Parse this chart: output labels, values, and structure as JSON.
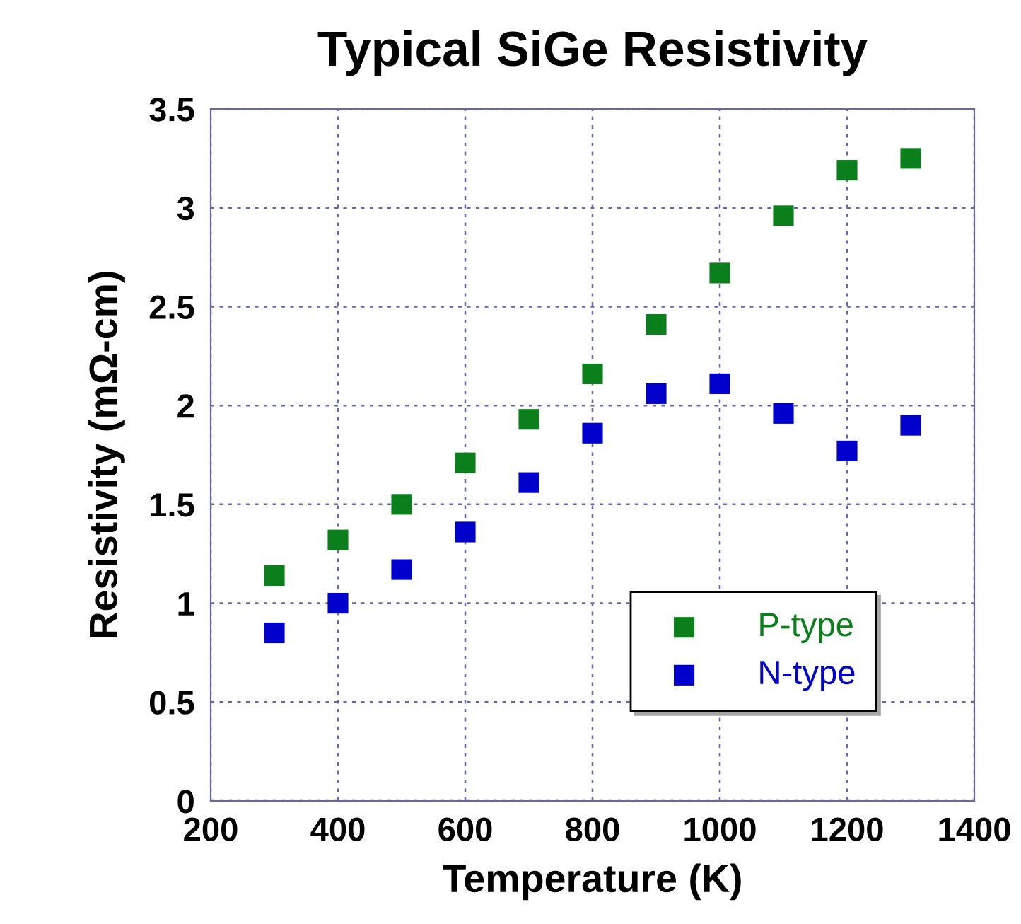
{
  "chart_data": {
    "type": "scatter",
    "title": "Typical SiGe Resistivity",
    "xlabel": "Temperature (K)",
    "ylabel": "Resistivity (mΩ-cm)",
    "x": [
      300,
      400,
      500,
      600,
      700,
      800,
      900,
      1000,
      1100,
      1200,
      1300
    ],
    "series": [
      {
        "name": "P-type",
        "color": "#0b7f1b",
        "values": [
          1.14,
          1.32,
          1.5,
          1.71,
          1.93,
          2.16,
          2.41,
          2.67,
          2.96,
          3.19,
          3.25
        ]
      },
      {
        "name": "N-type",
        "color": "#0000cc",
        "values": [
          0.85,
          1.0,
          1.17,
          1.36,
          1.61,
          1.86,
          2.06,
          2.11,
          1.96,
          1.77,
          1.9
        ]
      }
    ],
    "xlim": [
      200,
      1400
    ],
    "xticks": [
      200,
      400,
      600,
      800,
      1000,
      1200,
      1400
    ],
    "ylim": [
      0,
      3.5
    ],
    "yticks": [
      0,
      0.5,
      1,
      1.5,
      2,
      2.5,
      3,
      3.5
    ],
    "grid": true,
    "legend": "bottom right",
    "marker": "square"
  }
}
